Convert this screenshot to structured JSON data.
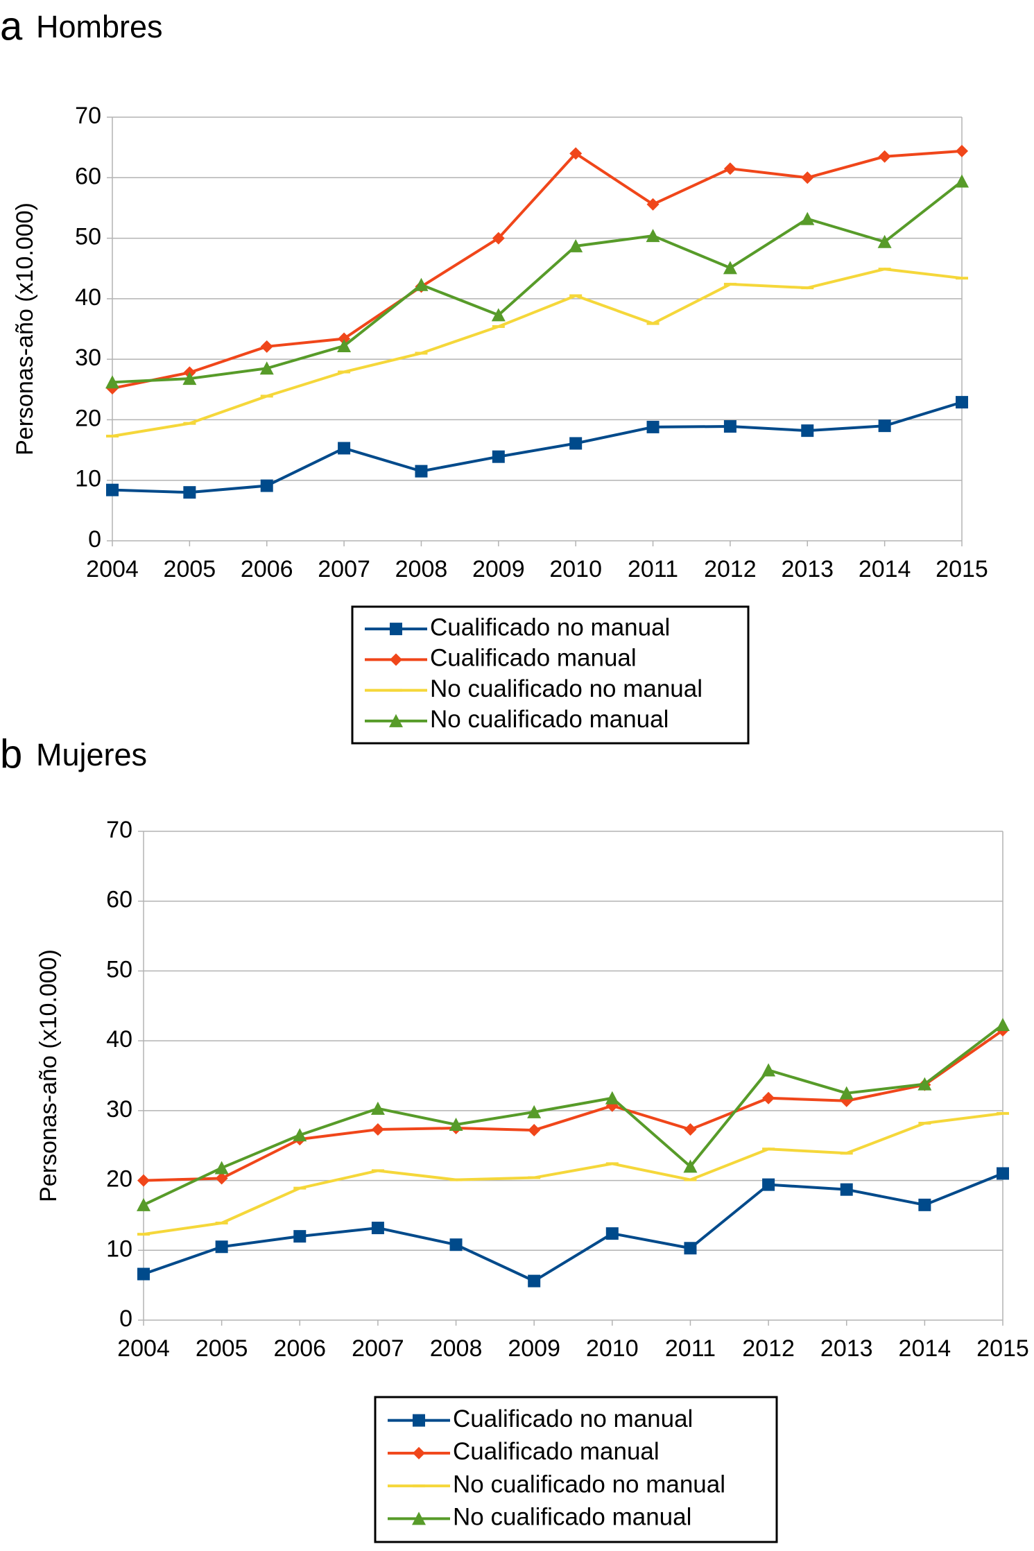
{
  "chart_data": [
    {
      "type": "line",
      "panel": "a",
      "title": "Hombres",
      "y_label": "Personas-año (x10.000)",
      "x": [
        2004,
        2005,
        2006,
        2007,
        2008,
        2009,
        2010,
        2011,
        2012,
        2013,
        2014,
        2015
      ],
      "xlim": [
        2004,
        2015
      ],
      "xticks": [
        2004,
        2005,
        2006,
        2007,
        2008,
        2009,
        2010,
        2011,
        2012,
        2013,
        2014,
        2015
      ],
      "ylim": [
        0,
        70
      ],
      "yticks": [
        0,
        10,
        20,
        30,
        40,
        50,
        60,
        70
      ],
      "grid": true,
      "series": [
        {
          "name": "Cualificado no manual",
          "color": "#004a8b",
          "marker": "square",
          "values": [
            8.4,
            8.0,
            9.1,
            15.3,
            11.5,
            13.9,
            16.1,
            18.8,
            18.9,
            18.2,
            19.0,
            22.9
          ]
        },
        {
          "name": "Cualificado manual",
          "color": "#f0461a",
          "marker": "diamond",
          "values": [
            25.2,
            27.8,
            32.1,
            33.4,
            42.0,
            50.0,
            64.0,
            55.6,
            61.5,
            60.0,
            63.5,
            64.4
          ]
        },
        {
          "name": "No cualificado no manual",
          "color": "#f5d73a",
          "marker": "dash",
          "values": [
            17.3,
            19.4,
            23.9,
            27.9,
            31.0,
            35.4,
            40.5,
            35.9,
            42.4,
            41.8,
            44.9,
            43.4
          ]
        },
        {
          "name": "No cualificado manual",
          "color": "#579b29",
          "marker": "triangle",
          "values": [
            26.2,
            26.8,
            28.5,
            32.2,
            42.3,
            37.3,
            48.7,
            50.4,
            45.1,
            53.2,
            49.4,
            59.4
          ]
        }
      ]
    },
    {
      "type": "line",
      "panel": "b",
      "title": "Mujeres",
      "y_label": "Personas-año (x10.000)",
      "x": [
        2004,
        2005,
        2006,
        2007,
        2008,
        2009,
        2010,
        2011,
        2012,
        2013,
        2014,
        2015
      ],
      "xlim": [
        2004,
        2015
      ],
      "xticks": [
        2004,
        2005,
        2006,
        2007,
        2008,
        2009,
        2010,
        2011,
        2012,
        2013,
        2014,
        2015
      ],
      "ylim": [
        0,
        70
      ],
      "yticks": [
        0,
        10,
        20,
        30,
        40,
        50,
        60,
        70
      ],
      "grid": true,
      "series": [
        {
          "name": "Cualificado no manual",
          "color": "#004a8b",
          "marker": "square",
          "values": [
            6.6,
            10.5,
            12.0,
            13.2,
            10.8,
            5.6,
            12.4,
            10.3,
            19.4,
            18.7,
            16.5,
            21.0
          ]
        },
        {
          "name": "Cualificado manual",
          "color": "#f0461a",
          "marker": "diamond",
          "values": [
            20.0,
            20.3,
            25.9,
            27.3,
            27.5,
            27.2,
            30.7,
            27.3,
            31.8,
            31.4,
            33.7,
            41.5
          ]
        },
        {
          "name": "No cualificado no manual",
          "color": "#f5d73a",
          "marker": "dash",
          "values": [
            12.3,
            13.9,
            18.9,
            21.4,
            20.1,
            20.4,
            22.4,
            20.1,
            24.5,
            23.9,
            28.2,
            29.6
          ]
        },
        {
          "name": "No cualificado manual",
          "color": "#579b29",
          "marker": "triangle",
          "values": [
            16.5,
            21.8,
            26.5,
            30.3,
            28.0,
            29.8,
            31.8,
            22.0,
            35.8,
            32.5,
            33.8,
            42.3
          ]
        }
      ]
    }
  ]
}
